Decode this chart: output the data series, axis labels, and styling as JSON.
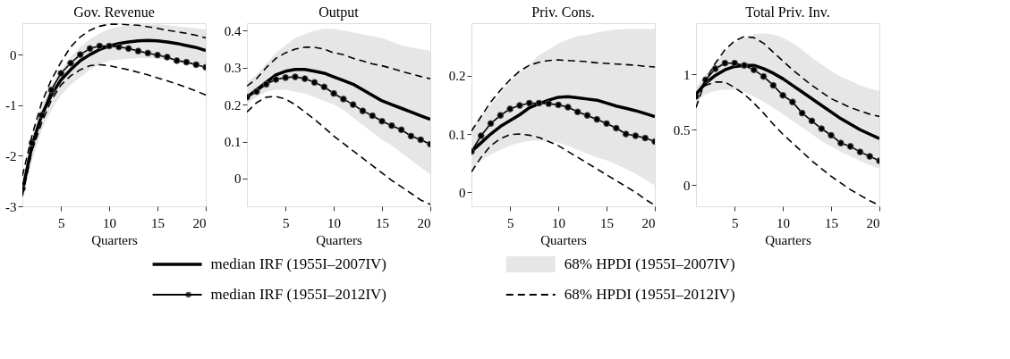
{
  "chart_data": [
    {
      "type": "line",
      "title": "Gov. Revenue",
      "xlabel": "Quarters",
      "grid": false,
      "legend": "bottom",
      "x": [
        1,
        2,
        3,
        4,
        5,
        6,
        7,
        8,
        9,
        10,
        11,
        12,
        13,
        14,
        15,
        16,
        17,
        18,
        19,
        20
      ],
      "xlim": [
        1,
        20
      ],
      "xticks": [
        5,
        10,
        15,
        20
      ],
      "ylim": [
        -3,
        0.62
      ],
      "yticks": [
        -3,
        -2,
        -1,
        0
      ],
      "series": [
        {
          "name": "median IRF (1955I–2007IV)",
          "color": "#000000",
          "line_style": "solid",
          "marker": "none",
          "values": [
            -2.7,
            -1.8,
            -1.2,
            -0.8,
            -0.5,
            -0.3,
            -0.12,
            0.0,
            0.1,
            0.17,
            0.22,
            0.25,
            0.27,
            0.28,
            0.27,
            0.25,
            0.22,
            0.18,
            0.14,
            0.08
          ]
        },
        {
          "name": "68% HPDI (1955I–2007IV)",
          "color": "#e6e6e6",
          "values": [
            null,
            null,
            null,
            null,
            null,
            null,
            null,
            null,
            null,
            null,
            null,
            null,
            null,
            null,
            null,
            null,
            null,
            null,
            null,
            null
          ],
          "lower": [
            -2.9,
            -2.1,
            -1.5,
            -1.1,
            -0.8,
            -0.6,
            -0.45,
            -0.3,
            -0.2,
            -0.12,
            -0.1,
            -0.08,
            -0.07,
            -0.07,
            -0.08,
            -0.1,
            -0.12,
            -0.15,
            -0.18,
            -0.22
          ],
          "upper": [
            -2.5,
            -1.6,
            -1.0,
            -0.6,
            -0.3,
            -0.05,
            0.15,
            0.3,
            0.42,
            0.5,
            0.55,
            0.58,
            0.6,
            0.6,
            0.6,
            0.58,
            0.56,
            0.54,
            0.52,
            0.5
          ]
        },
        {
          "name": "median IRF (1955I–2012IV)",
          "color": "#000000",
          "line_style": "solid",
          "marker": "circle",
          "values": [
            -2.65,
            -1.75,
            -1.2,
            -0.7,
            -0.37,
            -0.17,
            0.0,
            0.12,
            0.17,
            0.17,
            0.15,
            0.12,
            0.07,
            0.03,
            -0.01,
            -0.05,
            -0.12,
            -0.15,
            -0.2,
            -0.25
          ]
        },
        {
          "name": "68% HPDI (1955I–2012IV)",
          "color": "#000000",
          "line_style": "dashed",
          "marker": "none",
          "values": [
            -2.4,
            -1.6,
            -0.95,
            -0.5,
            -0.15,
            0.15,
            0.35,
            0.48,
            0.56,
            0.6,
            0.6,
            0.59,
            0.58,
            0.55,
            0.52,
            0.48,
            0.45,
            0.42,
            0.38,
            0.33
          ]
        },
        {
          "color": "#000000",
          "line_style": "dashed",
          "marker": "none",
          "values": [
            -2.8,
            -1.9,
            -1.35,
            -0.9,
            -0.6,
            -0.42,
            -0.3,
            -0.22,
            -0.2,
            -0.22,
            -0.26,
            -0.3,
            -0.35,
            -0.4,
            -0.46,
            -0.52,
            -0.58,
            -0.65,
            -0.72,
            -0.8
          ]
        }
      ]
    },
    {
      "type": "line",
      "title": "Output",
      "xlabel": "Quarters",
      "grid": false,
      "x": [
        1,
        2,
        3,
        4,
        5,
        6,
        7,
        8,
        9,
        10,
        11,
        12,
        13,
        14,
        15,
        16,
        17,
        18,
        19,
        20
      ],
      "xlim": [
        1,
        20
      ],
      "xticks": [
        5,
        10,
        15,
        20
      ],
      "ylim": [
        -0.075,
        0.42
      ],
      "yticks": [
        0,
        0.1,
        0.2,
        0.3,
        0.4
      ],
      "series": [
        {
          "color": "#000000",
          "line_style": "solid",
          "marker": "none",
          "values": [
            0.22,
            0.24,
            0.26,
            0.28,
            0.29,
            0.295,
            0.295,
            0.29,
            0.285,
            0.275,
            0.265,
            0.255,
            0.24,
            0.225,
            0.21,
            0.2,
            0.19,
            0.18,
            0.17,
            0.16
          ]
        },
        {
          "color": "#e6e6e6",
          "values": [
            null,
            null,
            null,
            null,
            null,
            null,
            null,
            null,
            null,
            null,
            null,
            null,
            null,
            null,
            null,
            null,
            null,
            null,
            null,
            null
          ],
          "lower": [
            0.2,
            0.22,
            0.235,
            0.24,
            0.24,
            0.235,
            0.23,
            0.22,
            0.21,
            0.2,
            0.185,
            0.165,
            0.145,
            0.125,
            0.105,
            0.09,
            0.07,
            0.05,
            0.03,
            0.012
          ],
          "upper": [
            0.26,
            0.28,
            0.31,
            0.34,
            0.36,
            0.38,
            0.39,
            0.4,
            0.405,
            0.405,
            0.4,
            0.395,
            0.39,
            0.385,
            0.38,
            0.37,
            0.36,
            0.355,
            0.35,
            0.345
          ]
        },
        {
          "color": "#000000",
          "line_style": "solid",
          "marker": "circle",
          "values": [
            0.22,
            0.235,
            0.255,
            0.268,
            0.273,
            0.275,
            0.27,
            0.26,
            0.248,
            0.23,
            0.215,
            0.2,
            0.183,
            0.17,
            0.155,
            0.143,
            0.132,
            0.115,
            0.105,
            0.093
          ]
        },
        {
          "color": "#000000",
          "line_style": "dashed",
          "marker": "none",
          "values": [
            0.25,
            0.27,
            0.3,
            0.325,
            0.34,
            0.35,
            0.355,
            0.355,
            0.35,
            0.34,
            0.335,
            0.325,
            0.318,
            0.31,
            0.305,
            0.298,
            0.29,
            0.283,
            0.276,
            0.27
          ]
        },
        {
          "color": "#000000",
          "line_style": "dashed",
          "marker": "none",
          "values": [
            0.18,
            0.205,
            0.22,
            0.222,
            0.215,
            0.2,
            0.18,
            0.16,
            0.138,
            0.115,
            0.095,
            0.075,
            0.055,
            0.035,
            0.015,
            -0.005,
            -0.022,
            -0.04,
            -0.058,
            -0.07
          ]
        }
      ]
    },
    {
      "type": "line",
      "title": "Priv. Cons.",
      "xlabel": "Quarters",
      "grid": false,
      "x": [
        1,
        2,
        3,
        4,
        5,
        6,
        7,
        8,
        9,
        10,
        11,
        12,
        13,
        14,
        15,
        16,
        17,
        18,
        19,
        20
      ],
      "xlim": [
        1,
        20
      ],
      "xticks": [
        5,
        10,
        15,
        20
      ],
      "ylim": [
        -0.024,
        0.29
      ],
      "yticks": [
        0,
        0.1,
        0.2
      ],
      "series": [
        {
          "color": "#000000",
          "line_style": "solid",
          "marker": "none",
          "values": [
            0.07,
            0.085,
            0.1,
            0.113,
            0.123,
            0.133,
            0.145,
            0.152,
            0.158,
            0.163,
            0.164,
            0.162,
            0.16,
            0.158,
            0.153,
            0.148,
            0.144,
            0.14,
            0.135,
            0.13
          ]
        },
        {
          "color": "#e6e6e6",
          "values": [
            null,
            null,
            null,
            null,
            null,
            null,
            null,
            null,
            null,
            null,
            null,
            null,
            null,
            null,
            null,
            null,
            null,
            null,
            null,
            null
          ],
          "lower": [
            0.04,
            0.055,
            0.065,
            0.073,
            0.08,
            0.085,
            0.088,
            0.089,
            0.088,
            0.085,
            0.08,
            0.073,
            0.066,
            0.06,
            0.055,
            0.048,
            0.04,
            0.032,
            0.022,
            0.012
          ],
          "upper": [
            0.11,
            0.13,
            0.15,
            0.17,
            0.19,
            0.205,
            0.22,
            0.235,
            0.245,
            0.255,
            0.262,
            0.268,
            0.27,
            0.274,
            0.277,
            0.279,
            0.28,
            0.28,
            0.28,
            0.28
          ]
        },
        {
          "color": "#000000",
          "line_style": "solid",
          "marker": "circle",
          "values": [
            0.07,
            0.097,
            0.118,
            0.132,
            0.143,
            0.149,
            0.153,
            0.153,
            0.152,
            0.15,
            0.146,
            0.138,
            0.132,
            0.125,
            0.118,
            0.11,
            0.1,
            0.097,
            0.093,
            0.087
          ]
        },
        {
          "color": "#000000",
          "line_style": "dashed",
          "marker": "none",
          "values": [
            0.105,
            0.13,
            0.155,
            0.175,
            0.193,
            0.208,
            0.218,
            0.223,
            0.226,
            0.227,
            0.226,
            0.225,
            0.224,
            0.222,
            0.221,
            0.22,
            0.219,
            0.218,
            0.216,
            0.215
          ]
        },
        {
          "color": "#000000",
          "line_style": "dashed",
          "marker": "none",
          "values": [
            0.035,
            0.06,
            0.08,
            0.092,
            0.099,
            0.1,
            0.098,
            0.094,
            0.087,
            0.08,
            0.07,
            0.06,
            0.05,
            0.04,
            0.03,
            0.02,
            0.01,
            0.0,
            -0.012,
            -0.022
          ]
        }
      ]
    },
    {
      "type": "line",
      "title": "Total Priv. Inv.",
      "xlabel": "Quarters",
      "grid": false,
      "x": [
        1,
        2,
        3,
        4,
        5,
        6,
        7,
        8,
        9,
        10,
        11,
        12,
        13,
        14,
        15,
        16,
        17,
        18,
        19,
        20
      ],
      "xlim": [
        1,
        20
      ],
      "xticks": [
        5,
        10,
        15,
        20
      ],
      "ylim": [
        -0.19,
        1.46
      ],
      "yticks": [
        0,
        0.5,
        1
      ],
      "series": [
        {
          "color": "#000000",
          "line_style": "solid",
          "marker": "none",
          "values": [
            0.82,
            0.92,
            0.99,
            1.04,
            1.07,
            1.08,
            1.08,
            1.05,
            1.01,
            0.96,
            0.9,
            0.84,
            0.78,
            0.72,
            0.66,
            0.6,
            0.55,
            0.5,
            0.46,
            0.42
          ]
        },
        {
          "color": "#e6e6e6",
          "values": [
            null,
            null,
            null,
            null,
            null,
            null,
            null,
            null,
            null,
            null,
            null,
            null,
            null,
            null,
            null,
            null,
            null,
            null,
            null,
            null
          ],
          "lower": [
            0.75,
            0.82,
            0.85,
            0.86,
            0.86,
            0.84,
            0.8,
            0.75,
            0.7,
            0.64,
            0.58,
            0.52,
            0.46,
            0.4,
            0.35,
            0.3,
            0.26,
            0.22,
            0.18,
            0.15
          ],
          "upper": [
            0.88,
            1.0,
            1.1,
            1.2,
            1.28,
            1.33,
            1.36,
            1.37,
            1.36,
            1.33,
            1.28,
            1.22,
            1.15,
            1.09,
            1.03,
            0.98,
            0.94,
            0.9,
            0.87,
            0.85
          ]
        },
        {
          "color": "#000000",
          "line_style": "solid",
          "marker": "circle",
          "values": [
            0.8,
            0.95,
            1.05,
            1.1,
            1.1,
            1.08,
            1.04,
            0.98,
            0.9,
            0.81,
            0.75,
            0.65,
            0.58,
            0.51,
            0.45,
            0.38,
            0.35,
            0.3,
            0.26,
            0.22
          ]
        },
        {
          "color": "#000000",
          "line_style": "dashed",
          "marker": "none",
          "values": [
            0.7,
            0.95,
            1.1,
            1.22,
            1.3,
            1.34,
            1.33,
            1.28,
            1.2,
            1.12,
            1.04,
            0.97,
            0.9,
            0.84,
            0.78,
            0.74,
            0.7,
            0.67,
            0.64,
            0.62
          ]
        },
        {
          "color": "#000000",
          "line_style": "dashed",
          "marker": "none",
          "values": [
            0.82,
            0.9,
            0.93,
            0.93,
            0.88,
            0.82,
            0.74,
            0.65,
            0.55,
            0.46,
            0.38,
            0.3,
            0.22,
            0.15,
            0.08,
            0.02,
            -0.04,
            -0.09,
            -0.14,
            -0.18
          ]
        }
      ]
    }
  ]
}
